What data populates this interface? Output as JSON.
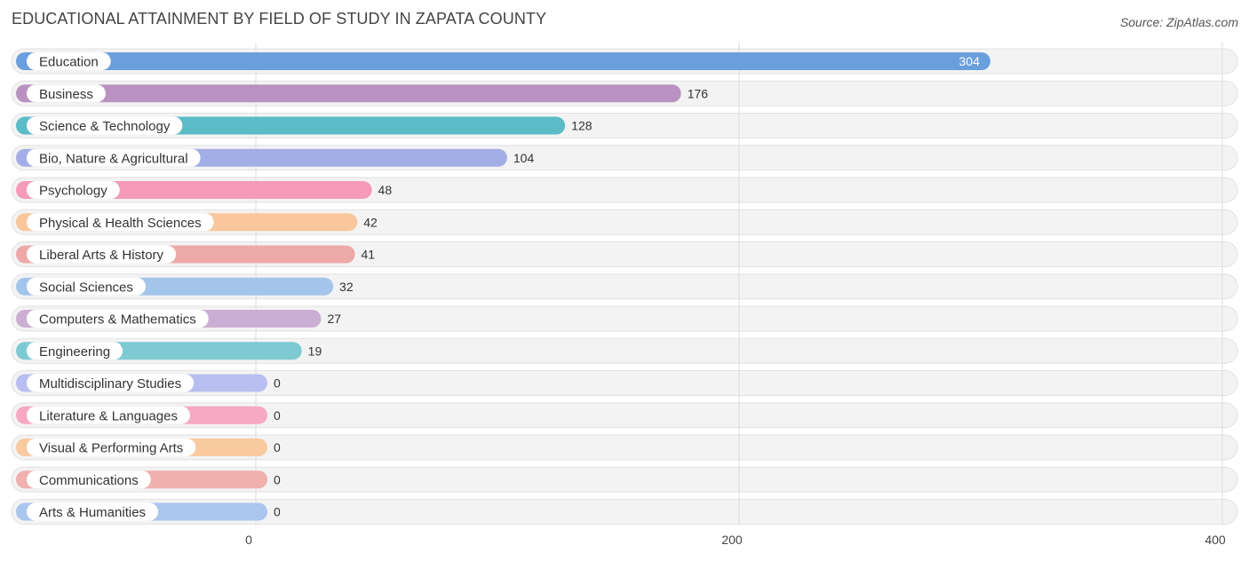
{
  "header": {
    "title": "EDUCATIONAL ATTAINMENT BY FIELD OF STUDY IN ZAPATA COUNTY",
    "source": "Source: ZipAtlas.com"
  },
  "chart_data": {
    "type": "bar",
    "orientation": "horizontal",
    "title": "EDUCATIONAL ATTAINMENT BY FIELD OF STUDY IN ZAPATA COUNTY",
    "xlabel": "",
    "ylabel": "",
    "xlim": [
      0,
      400
    ],
    "xticks": [
      0,
      200,
      400
    ],
    "grid": true,
    "categories": [
      "Education",
      "Business",
      "Science & Technology",
      "Bio, Nature & Agricultural",
      "Psychology",
      "Physical & Health Sciences",
      "Liberal Arts & History",
      "Social Sciences",
      "Computers & Mathematics",
      "Engineering",
      "Multidisciplinary Studies",
      "Literature & Languages",
      "Visual & Performing Arts",
      "Communications",
      "Arts & Humanities"
    ],
    "values": [
      304,
      176,
      128,
      104,
      48,
      42,
      41,
      32,
      27,
      19,
      0,
      0,
      0,
      0,
      0
    ],
    "colors": [
      "#6a9fde",
      "#b992c1",
      "#5bbcc8",
      "#a4aee6",
      "#f59ab8",
      "#f9c79b",
      "#eda9a8",
      "#a4c5ea",
      "#cbaed3",
      "#7ecad3",
      "#b8bff0",
      "#f7a8c3",
      "#f9c99f",
      "#f0b0ae",
      "#a9c6ef"
    ]
  }
}
